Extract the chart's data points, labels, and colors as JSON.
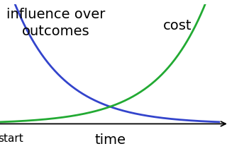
{
  "xlabel": "time",
  "x_start_label": "start",
  "label_influence": "influence over\noutcomes",
  "label_cost": "cost",
  "curve_decay_color": "#3344cc",
  "curve_rise_color": "#22aa33",
  "background_color": "#ffffff",
  "axis_color": "#000000",
  "text_fontsize": 14,
  "label_fontsize": 11,
  "line_width": 2.0,
  "decay_rate": 4.5,
  "rise_rate": 4.5
}
